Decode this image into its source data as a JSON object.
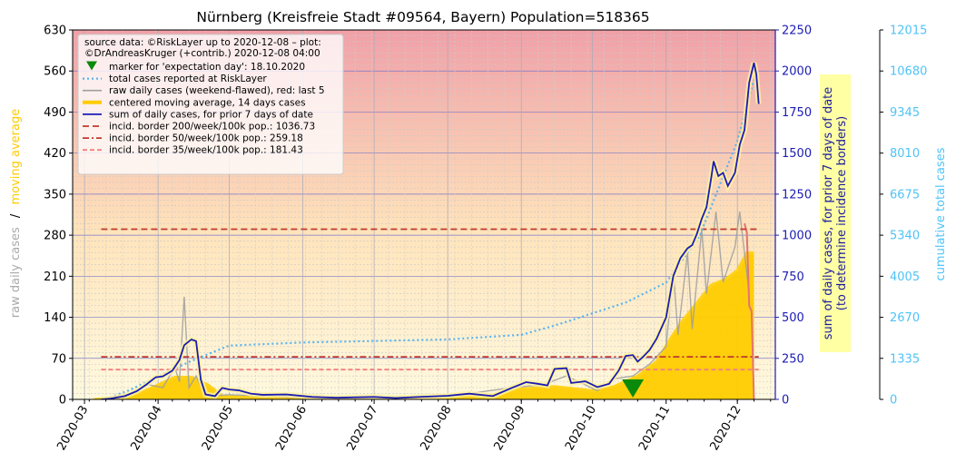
{
  "chart_data": {
    "type": "line",
    "title": "Nürnberg (Kreisfreie Stadt #09564, Bayern) Population=518365",
    "x_tick_labels": [
      "2020-03",
      "2020-04",
      "2020-05",
      "2020-06",
      "2020-07",
      "2020-08",
      "2020-09",
      "2020-10",
      "2020-11",
      "2020-12"
    ],
    "x_range": [
      "2020-02-25",
      "2020-12-17"
    ],
    "left_axis": {
      "label_part1": "raw daily cases",
      "label_sep": "/",
      "label_part2": "moving average",
      "ylim": [
        0,
        630
      ],
      "ticks": [
        0,
        70,
        140,
        210,
        280,
        350,
        420,
        490,
        560,
        630
      ],
      "tick_labels": [
        "0",
        "70",
        "140",
        "210",
        "280",
        "350",
        "420",
        "490",
        "560",
        "630"
      ]
    },
    "right_axis_1": {
      "label_line1": "sum of daily cases, for prior 7 days of date",
      "label_line2": "(to determine incidence borders)",
      "ylim": [
        0,
        2250
      ],
      "tick_labels": [
        "0",
        "250",
        "500",
        "750",
        "1000",
        "1250",
        "1500",
        "1750",
        "2000",
        "2250"
      ]
    },
    "right_axis_2": {
      "label": "cumulative total cases",
      "ylim": [
        0,
        12015
      ],
      "tick_labels": [
        "0",
        "1335",
        "2670",
        "4005",
        "5340",
        "6675",
        "8010",
        "9345",
        "10680",
        "12015"
      ]
    },
    "legend_header_line1": "source data: ©RiskLayer up to 2020-12-08 – plot:",
    "legend_header_line2": "©DrAndreasKruger (+contrib.) 2020-12-08 04:00",
    "legend_items": [
      {
        "label": "marker for 'expectation day': 18.10.2020",
        "kind": "marker"
      },
      {
        "label": "total cases reported at RiskLayer",
        "kind": "dotted"
      },
      {
        "label": "raw daily cases (weekend-flawed), red: last 5",
        "kind": "raw"
      },
      {
        "label": "centered moving average, 14 days cases",
        "kind": "ma"
      },
      {
        "label": "sum of daily cases, for prior 7 days of date",
        "kind": "sum"
      },
      {
        "label": "incid. border 200/week/100k pop.: 1036.73",
        "kind": "b200"
      },
      {
        "label": "incid. border 50/week/100k pop.: 259.18",
        "kind": "b50"
      },
      {
        "label": "incid. border 35/week/100k pop.: 181.43",
        "kind": "b35"
      }
    ],
    "legend_placement": "top-left",
    "grid": true,
    "incidence_borders": [
      {
        "name": "200/week/100k",
        "value": 1036.73
      },
      {
        "name": "50/week/100k",
        "value": 259.18
      },
      {
        "name": "35/week/100k",
        "value": 181.43
      }
    ],
    "expectation_day": "2020-10-18",
    "series": [
      {
        "name": "sum of daily cases, for prior 7 days of date",
        "axis": "right_axis_1",
        "points": [
          [
            "2020-03-08",
            0
          ],
          [
            "2020-03-12",
            5
          ],
          [
            "2020-03-18",
            20
          ],
          [
            "2020-03-23",
            50
          ],
          [
            "2020-03-27",
            90
          ],
          [
            "2020-03-31",
            135
          ],
          [
            "2020-04-03",
            140
          ],
          [
            "2020-04-07",
            175
          ],
          [
            "2020-04-10",
            240
          ],
          [
            "2020-04-12",
            330
          ],
          [
            "2020-04-15",
            365
          ],
          [
            "2020-04-17",
            355
          ],
          [
            "2020-04-19",
            120
          ],
          [
            "2020-04-21",
            30
          ],
          [
            "2020-04-25",
            20
          ],
          [
            "2020-04-28",
            70
          ],
          [
            "2020-05-01",
            60
          ],
          [
            "2020-05-05",
            55
          ],
          [
            "2020-05-10",
            35
          ],
          [
            "2020-05-15",
            28
          ],
          [
            "2020-05-25",
            30
          ],
          [
            "2020-06-05",
            15
          ],
          [
            "2020-06-15",
            10
          ],
          [
            "2020-07-01",
            15
          ],
          [
            "2020-07-10",
            8
          ],
          [
            "2020-07-20",
            15
          ],
          [
            "2020-08-01",
            22
          ],
          [
            "2020-08-10",
            35
          ],
          [
            "2020-08-20",
            20
          ],
          [
            "2020-08-28",
            70
          ],
          [
            "2020-09-03",
            105
          ],
          [
            "2020-09-08",
            95
          ],
          [
            "2020-09-12",
            85
          ],
          [
            "2020-09-15",
            185
          ],
          [
            "2020-09-20",
            190
          ],
          [
            "2020-09-22",
            100
          ],
          [
            "2020-09-28",
            110
          ],
          [
            "2020-10-03",
            75
          ],
          [
            "2020-10-08",
            95
          ],
          [
            "2020-10-12",
            175
          ],
          [
            "2020-10-15",
            265
          ],
          [
            "2020-10-18",
            270
          ],
          [
            "2020-10-20",
            230
          ],
          [
            "2020-10-22",
            255
          ],
          [
            "2020-10-25",
            300
          ],
          [
            "2020-10-28",
            370
          ],
          [
            "2020-11-01",
            500
          ],
          [
            "2020-11-04",
            750
          ],
          [
            "2020-11-07",
            860
          ],
          [
            "2020-11-10",
            920
          ],
          [
            "2020-11-12",
            940
          ],
          [
            "2020-11-14",
            1010
          ],
          [
            "2020-11-16",
            1100
          ],
          [
            "2020-11-18",
            1170
          ],
          [
            "2020-11-20",
            1350
          ],
          [
            "2020-11-21",
            1450
          ],
          [
            "2020-11-23",
            1360
          ],
          [
            "2020-11-25",
            1380
          ],
          [
            "2020-11-27",
            1300
          ],
          [
            "2020-11-30",
            1380
          ],
          [
            "2020-12-02",
            1550
          ],
          [
            "2020-12-04",
            1640
          ],
          [
            "2020-12-06",
            1930
          ],
          [
            "2020-12-08",
            2050
          ],
          [
            "2020-12-09",
            1980
          ],
          [
            "2020-12-10",
            1800
          ]
        ]
      },
      {
        "name": "centered moving average, 14 days cases",
        "axis": "left_axis",
        "points": [
          [
            "2020-03-05",
            0
          ],
          [
            "2020-03-15",
            3
          ],
          [
            "2020-03-25",
            12
          ],
          [
            "2020-04-01",
            25
          ],
          [
            "2020-04-08",
            38
          ],
          [
            "2020-04-15",
            38
          ],
          [
            "2020-04-22",
            25
          ],
          [
            "2020-04-28",
            6
          ],
          [
            "2020-05-10",
            4
          ],
          [
            "2020-06-01",
            2
          ],
          [
            "2020-07-01",
            2
          ],
          [
            "2020-08-01",
            4
          ],
          [
            "2020-08-20",
            8
          ],
          [
            "2020-09-01",
            18
          ],
          [
            "2020-09-15",
            22
          ],
          [
            "2020-10-01",
            15
          ],
          [
            "2020-10-10",
            22
          ],
          [
            "2020-10-20",
            40
          ],
          [
            "2020-10-28",
            65
          ],
          [
            "2020-11-03",
            105
          ],
          [
            "2020-11-08",
            135
          ],
          [
            "2020-11-14",
            165
          ],
          [
            "2020-11-20",
            195
          ],
          [
            "2020-11-26",
            205
          ],
          [
            "2020-12-01",
            220
          ],
          [
            "2020-12-05",
            250
          ],
          [
            "2020-12-08",
            250
          ]
        ]
      },
      {
        "name": "raw daily cases (weekend-flawed), red: last 5",
        "axis": "left_axis",
        "points": [
          [
            "2020-03-10",
            0
          ],
          [
            "2020-03-20",
            10
          ],
          [
            "2020-03-28",
            25
          ],
          [
            "2020-04-03",
            20
          ],
          [
            "2020-04-08",
            55
          ],
          [
            "2020-04-10",
            30
          ],
          [
            "2020-04-12",
            175
          ],
          [
            "2020-04-14",
            20
          ],
          [
            "2020-04-17",
            40
          ],
          [
            "2020-04-21",
            5
          ],
          [
            "2020-05-01",
            8
          ],
          [
            "2020-06-01",
            3
          ],
          [
            "2020-07-01",
            2
          ],
          [
            "2020-08-01",
            5
          ],
          [
            "2020-08-28",
            20
          ],
          [
            "2020-09-10",
            25
          ],
          [
            "2020-09-20",
            40
          ],
          [
            "2020-10-03",
            15
          ],
          [
            "2020-10-10",
            35
          ],
          [
            "2020-10-18",
            40
          ],
          [
            "2020-10-25",
            60
          ],
          [
            "2020-11-01",
            90
          ],
          [
            "2020-11-04",
            220
          ],
          [
            "2020-11-06",
            110
          ],
          [
            "2020-11-10",
            250
          ],
          [
            "2020-11-12",
            120
          ],
          [
            "2020-11-16",
            290
          ],
          [
            "2020-11-18",
            180
          ],
          [
            "2020-11-22",
            320
          ],
          [
            "2020-11-25",
            200
          ],
          [
            "2020-11-30",
            260
          ],
          [
            "2020-12-02",
            320
          ],
          [
            "2020-12-04",
            250
          ],
          [
            "2020-12-06",
            180
          ]
        ],
        "last5_red": [
          [
            "2020-12-04",
            300
          ],
          [
            "2020-12-05",
            285
          ],
          [
            "2020-12-06",
            160
          ],
          [
            "2020-12-07",
            150
          ],
          [
            "2020-12-08",
            0
          ]
        ]
      },
      {
        "name": "total cases reported at RiskLayer",
        "axis": "right_axis_2",
        "points": [
          [
            "2020-03-10",
            20
          ],
          [
            "2020-03-20",
            300
          ],
          [
            "2020-04-01",
            750
          ],
          [
            "2020-04-15",
            1250
          ],
          [
            "2020-05-01",
            1750
          ],
          [
            "2020-06-01",
            1850
          ],
          [
            "2020-07-01",
            1900
          ],
          [
            "2020-08-01",
            1950
          ],
          [
            "2020-09-01",
            2100
          ],
          [
            "2020-09-15",
            2400
          ],
          [
            "2020-10-01",
            2800
          ],
          [
            "2020-10-15",
            3150
          ],
          [
            "2020-11-01",
            3800
          ],
          [
            "2020-11-15",
            5300
          ],
          [
            "2020-12-01",
            8400
          ],
          [
            "2020-12-08",
            10400
          ]
        ]
      }
    ]
  }
}
